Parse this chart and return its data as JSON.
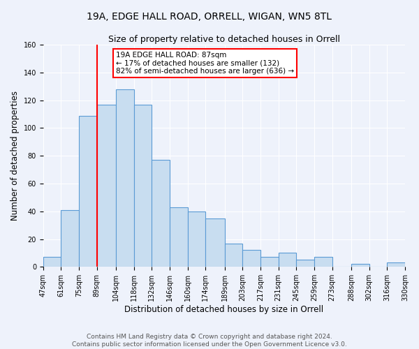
{
  "title_line1": "19A, EDGE HALL ROAD, ORRELL, WIGAN, WN5 8TL",
  "title_line2": "Size of property relative to detached houses in Orrell",
  "xlabel": "Distribution of detached houses by size in Orrell",
  "ylabel": "Number of detached properties",
  "bar_edges": [
    47,
    61,
    75,
    89,
    104,
    118,
    132,
    146,
    160,
    174,
    189,
    203,
    217,
    231,
    245,
    259,
    273,
    288,
    302,
    316,
    330
  ],
  "bar_heights": [
    7,
    41,
    109,
    117,
    128,
    117,
    77,
    43,
    40,
    35,
    17,
    12,
    7,
    10,
    5,
    7,
    0,
    2,
    0,
    3
  ],
  "bar_color": "#c8ddf0",
  "bar_edge_color": "#5b9bd5",
  "ref_line_x": 89,
  "ref_line_color": "red",
  "annotation_title": "19A EDGE HALL ROAD: 87sqm",
  "annotation_line1": "← 17% of detached houses are smaller (132)",
  "annotation_line2": "82% of semi-detached houses are larger (636) →",
  "annotation_box_color": "white",
  "annotation_box_edge": "red",
  "xlim": [
    47,
    330
  ],
  "ylim": [
    0,
    160
  ],
  "yticks": [
    0,
    20,
    40,
    60,
    80,
    100,
    120,
    140,
    160
  ],
  "xtick_labels": [
    "47sqm",
    "61sqm",
    "75sqm",
    "89sqm",
    "104sqm",
    "118sqm",
    "132sqm",
    "146sqm",
    "160sqm",
    "174sqm",
    "189sqm",
    "203sqm",
    "217sqm",
    "231sqm",
    "245sqm",
    "259sqm",
    "273sqm",
    "288sqm",
    "302sqm",
    "316sqm",
    "330sqm"
  ],
  "xtick_positions": [
    47,
    61,
    75,
    89,
    104,
    118,
    132,
    146,
    160,
    174,
    189,
    203,
    217,
    231,
    245,
    259,
    273,
    288,
    302,
    316,
    330
  ],
  "footer_line1": "Contains HM Land Registry data © Crown copyright and database right 2024.",
  "footer_line2": "Contains public sector information licensed under the Open Government Licence v3.0.",
  "bg_color": "#eef2fb",
  "plot_bg_color": "#eef2fb",
  "grid_color": "white",
  "title_fontsize": 10,
  "subtitle_fontsize": 9,
  "axis_label_fontsize": 8.5,
  "tick_fontsize": 7,
  "footer_fontsize": 6.5,
  "annot_fontsize": 7.5
}
